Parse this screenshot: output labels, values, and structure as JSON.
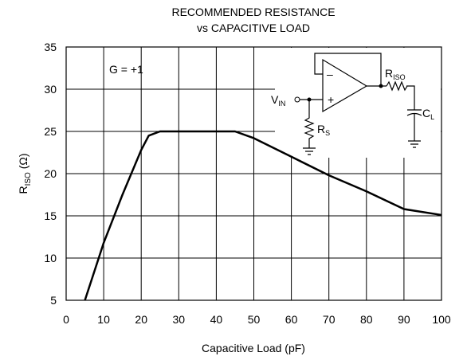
{
  "chart_data": {
    "type": "line",
    "title": [
      "RECOMMENDED RESISTANCE",
      "vs CAPACITIVE LOAD"
    ],
    "x_label": "Capacitive Load (pF)",
    "y_label": {
      "main": "R",
      "sub": "ISO",
      "rest": " (Ω)"
    },
    "annotation": "G = +1",
    "xlim": [
      0,
      100
    ],
    "xticks": [
      0,
      10,
      20,
      30,
      40,
      50,
      60,
      70,
      80,
      90,
      100
    ],
    "ylim": [
      5,
      35
    ],
    "yticks": [
      5,
      10,
      15,
      20,
      25,
      30,
      35
    ],
    "grid": true,
    "series": [
      {
        "color": "#000000",
        "x": [
          5,
          10,
          15,
          20,
          22,
          25,
          30,
          45,
          50,
          60,
          70,
          80,
          90,
          100
        ],
        "values": [
          5,
          11.8,
          17.5,
          22.8,
          24.5,
          25,
          25,
          25,
          24.2,
          22,
          19.8,
          17.9,
          15.8,
          15.1
        ]
      }
    ],
    "inset": {
      "vin": {
        "main": "V",
        "sub": "IN"
      },
      "rs": {
        "main": "R",
        "sub": "S"
      },
      "riso": {
        "main": "R",
        "sub": "ISO"
      },
      "cl": {
        "main": "C",
        "sub": "L"
      },
      "minus": "–",
      "plus": "+"
    }
  }
}
